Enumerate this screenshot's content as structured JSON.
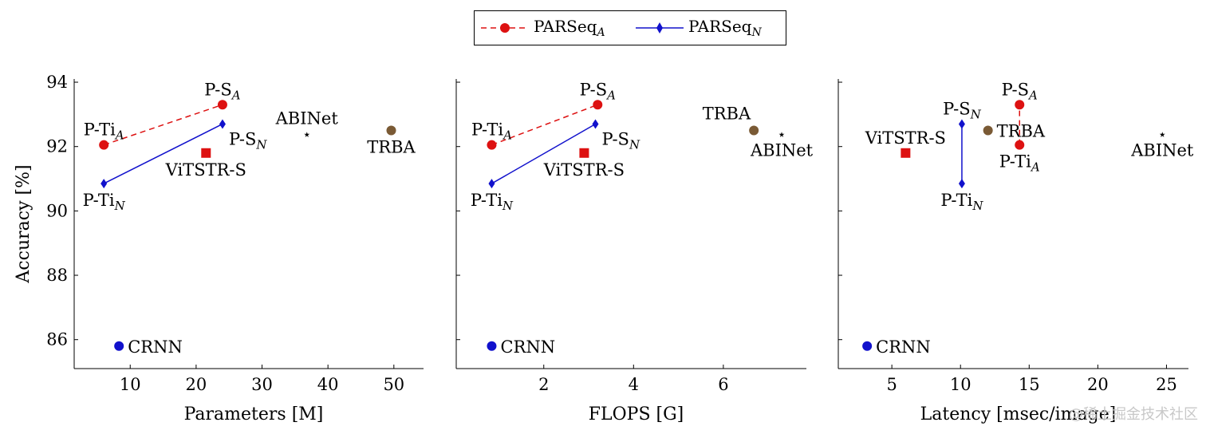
{
  "legend": {
    "position": "top-center",
    "items": [
      {
        "label": "PARSeq",
        "sub": "A",
        "color": "#dd1111",
        "marker": "circle",
        "line": "dashed"
      },
      {
        "label": "PARSeq",
        "sub": "N",
        "color": "#1111cc",
        "marker": "diamond",
        "line": "solid"
      }
    ]
  },
  "watermark": "@稀土掘金技术社区",
  "colors": {
    "red": "#dd1111",
    "blue": "#1111cc",
    "brown": "#7a5a35",
    "black": "#000000"
  },
  "chart_data": [
    {
      "type": "scatter",
      "xlabel": "Parameters [M]",
      "ylabel": "Accuracy [%]",
      "xlim": [
        1.5,
        54.5
      ],
      "ylim": [
        85.1,
        94.1
      ],
      "xticks": [
        10,
        20,
        30,
        40,
        50
      ],
      "yticks": [
        86,
        88,
        90,
        92,
        94
      ],
      "points": [
        {
          "name": "P-Ti",
          "sub": "A",
          "x": 6,
          "y": 92.05,
          "marker": "circle",
          "color": "red",
          "label_pos": "above"
        },
        {
          "name": "P-S",
          "sub": "A",
          "x": 24,
          "y": 93.3,
          "marker": "circle",
          "color": "red",
          "label_pos": "above"
        },
        {
          "name": "P-Ti",
          "sub": "N",
          "x": 6,
          "y": 90.85,
          "marker": "diamond",
          "color": "blue",
          "label_pos": "below"
        },
        {
          "name": "P-S",
          "sub": "N",
          "x": 24,
          "y": 92.7,
          "marker": "diamond",
          "color": "blue",
          "label_pos": "below-right"
        },
        {
          "name": "ViTSTR-S",
          "sub": "",
          "x": 21.5,
          "y": 91.8,
          "marker": "square",
          "color": "red",
          "label_pos": "below"
        },
        {
          "name": "ABINet",
          "sub": "",
          "x": 36.8,
          "y": 92.4,
          "marker": "star",
          "color": "black",
          "label_pos": "above"
        },
        {
          "name": "TRBA",
          "sub": "",
          "x": 49.6,
          "y": 92.5,
          "marker": "circle",
          "color": "brown",
          "label_pos": "below"
        },
        {
          "name": "CRNN",
          "sub": "",
          "x": 8.3,
          "y": 85.8,
          "marker": "circle",
          "color": "blue",
          "label_pos": "right"
        }
      ]
    },
    {
      "type": "scatter",
      "xlabel": "FLOPS [G]",
      "ylabel": "",
      "xlim": [
        0.05,
        7.85
      ],
      "ylim": [
        85.1,
        94.1
      ],
      "xticks": [
        2,
        4,
        6
      ],
      "yticks": [
        86,
        88,
        90,
        92,
        94
      ],
      "points": [
        {
          "name": "P-Ti",
          "sub": "A",
          "x": 0.84,
          "y": 92.05,
          "marker": "circle",
          "color": "red",
          "label_pos": "above"
        },
        {
          "name": "P-S",
          "sub": "A",
          "x": 3.2,
          "y": 93.3,
          "marker": "circle",
          "color": "red",
          "label_pos": "above"
        },
        {
          "name": "P-Ti",
          "sub": "N",
          "x": 0.84,
          "y": 90.85,
          "marker": "diamond",
          "color": "blue",
          "label_pos": "below"
        },
        {
          "name": "P-S",
          "sub": "N",
          "x": 3.15,
          "y": 92.7,
          "marker": "diamond",
          "color": "blue",
          "label_pos": "below-right"
        },
        {
          "name": "ViTSTR-S",
          "sub": "",
          "x": 2.9,
          "y": 91.8,
          "marker": "square",
          "color": "red",
          "label_pos": "below"
        },
        {
          "name": "ABINet",
          "sub": "",
          "x": 7.3,
          "y": 92.4,
          "marker": "star",
          "color": "black",
          "label_pos": "below"
        },
        {
          "name": "TRBA",
          "sub": "",
          "x": 6.68,
          "y": 92.5,
          "marker": "circle",
          "color": "brown",
          "label_pos": "above-left"
        },
        {
          "name": "CRNN",
          "sub": "",
          "x": 0.84,
          "y": 85.8,
          "marker": "circle",
          "color": "blue",
          "label_pos": "right"
        }
      ]
    },
    {
      "type": "scatter",
      "xlabel": "Latency [msec/image]",
      "ylabel": "",
      "xlim": [
        1.1,
        26.6
      ],
      "ylim": [
        85.1,
        94.1
      ],
      "xticks": [
        5,
        10,
        15,
        20,
        25
      ],
      "yticks": [
        86,
        88,
        90,
        92,
        94
      ],
      "points": [
        {
          "name": "P-Ti",
          "sub": "A",
          "x": 14.3,
          "y": 92.05,
          "marker": "circle",
          "color": "red",
          "label_pos": "below"
        },
        {
          "name": "P-S",
          "sub": "A",
          "x": 14.3,
          "y": 93.3,
          "marker": "circle",
          "color": "red",
          "label_pos": "above"
        },
        {
          "name": "P-Ti",
          "sub": "N",
          "x": 10.1,
          "y": 90.85,
          "marker": "diamond",
          "color": "blue",
          "label_pos": "below"
        },
        {
          "name": "P-S",
          "sub": "N",
          "x": 10.1,
          "y": 92.7,
          "marker": "diamond",
          "color": "blue",
          "label_pos": "above"
        },
        {
          "name": "ViTSTR-S",
          "sub": "",
          "x": 6.0,
          "y": 91.8,
          "marker": "square",
          "color": "red",
          "label_pos": "above"
        },
        {
          "name": "ABINet",
          "sub": "",
          "x": 24.7,
          "y": 92.4,
          "marker": "star",
          "color": "black",
          "label_pos": "below"
        },
        {
          "name": "TRBA",
          "sub": "",
          "x": 12.0,
          "y": 92.5,
          "marker": "circle",
          "color": "brown",
          "label_pos": "right"
        },
        {
          "name": "CRNN",
          "sub": "",
          "x": 3.2,
          "y": 85.8,
          "marker": "circle",
          "color": "blue",
          "label_pos": "right"
        }
      ]
    }
  ]
}
